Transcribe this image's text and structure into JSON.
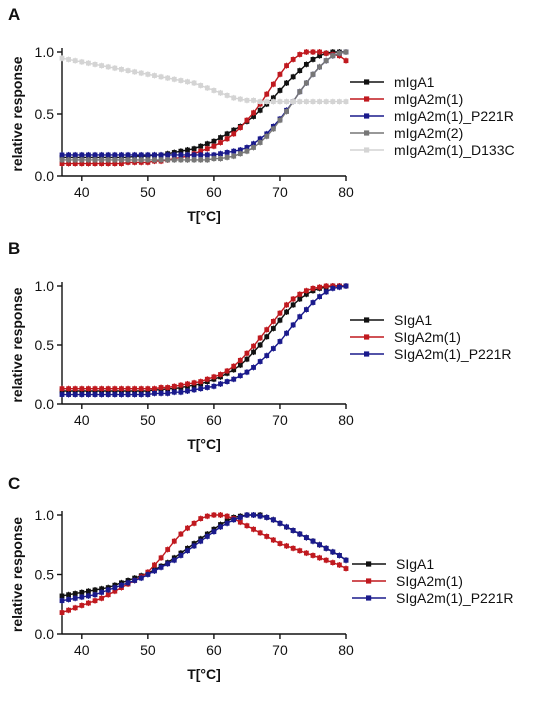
{
  "chart_data": [
    {
      "type": "line",
      "panel": "A",
      "xlabel": "T[°C]",
      "ylabel": "relative response",
      "xlim": [
        37,
        80
      ],
      "ylim": [
        0,
        1.0
      ],
      "xticks": [
        "40",
        "50",
        "60",
        "70",
        "80"
      ],
      "yticks": [
        "0.0",
        "0.5",
        "1.0"
      ],
      "legend": "right",
      "x": [
        37,
        38,
        39,
        40,
        41,
        42,
        43,
        44,
        45,
        46,
        47,
        48,
        49,
        50,
        51,
        52,
        53,
        54,
        55,
        56,
        57,
        58,
        59,
        60,
        61,
        62,
        63,
        64,
        65,
        66,
        67,
        68,
        69,
        70,
        71,
        72,
        73,
        74,
        75,
        76,
        77,
        78,
        79,
        80
      ],
      "series": [
        {
          "name": "mIgA1",
          "color": "#111111",
          "values": [
            0.15,
            0.15,
            0.15,
            0.15,
            0.15,
            0.15,
            0.15,
            0.15,
            0.15,
            0.15,
            0.15,
            0.16,
            0.16,
            0.16,
            0.17,
            0.17,
            0.18,
            0.19,
            0.2,
            0.21,
            0.22,
            0.24,
            0.26,
            0.28,
            0.31,
            0.34,
            0.37,
            0.4,
            0.44,
            0.48,
            0.53,
            0.58,
            0.63,
            0.69,
            0.75,
            0.8,
            0.85,
            0.9,
            0.94,
            0.97,
            0.99,
            1.0,
            1.0,
            1.0
          ]
        },
        {
          "name": "mIgA2m(1)",
          "color": "#c0191f",
          "values": [
            0.1,
            0.1,
            0.1,
            0.1,
            0.1,
            0.1,
            0.1,
            0.1,
            0.1,
            0.1,
            0.11,
            0.11,
            0.11,
            0.11,
            0.12,
            0.12,
            0.13,
            0.14,
            0.15,
            0.16,
            0.18,
            0.2,
            0.22,
            0.24,
            0.27,
            0.3,
            0.34,
            0.39,
            0.45,
            0.51,
            0.58,
            0.66,
            0.74,
            0.82,
            0.89,
            0.94,
            0.98,
            1.0,
            1.0,
            1.0,
            0.99,
            0.98,
            0.97,
            0.93
          ]
        },
        {
          "name": "mIgA2m(1)_P221R",
          "color": "#1a1a8c",
          "values": [
            0.17,
            0.17,
            0.17,
            0.17,
            0.17,
            0.17,
            0.17,
            0.17,
            0.17,
            0.17,
            0.17,
            0.17,
            0.17,
            0.17,
            0.17,
            0.17,
            0.17,
            0.17,
            0.17,
            0.17,
            0.17,
            0.17,
            0.17,
            0.17,
            0.18,
            0.19,
            0.2,
            0.21,
            0.23,
            0.26,
            0.3,
            0.34,
            0.4,
            0.46,
            0.53,
            0.6,
            0.68,
            0.75,
            0.82,
            0.88,
            0.93,
            0.97,
            0.99,
            1.0
          ]
        },
        {
          "name": "mIgA2m(2)",
          "color": "#777777",
          "values": [
            0.13,
            0.13,
            0.13,
            0.13,
            0.13,
            0.13,
            0.13,
            0.13,
            0.13,
            0.13,
            0.13,
            0.13,
            0.13,
            0.13,
            0.13,
            0.13,
            0.13,
            0.13,
            0.13,
            0.13,
            0.13,
            0.13,
            0.13,
            0.14,
            0.14,
            0.15,
            0.16,
            0.18,
            0.2,
            0.23,
            0.27,
            0.32,
            0.38,
            0.45,
            0.52,
            0.6,
            0.68,
            0.75,
            0.82,
            0.88,
            0.93,
            0.97,
            0.99,
            1.0
          ]
        },
        {
          "name": "mIgA2m(1)_D133C",
          "color": "#d4d4d4",
          "values": [
            0.95,
            0.94,
            0.93,
            0.92,
            0.91,
            0.9,
            0.89,
            0.88,
            0.87,
            0.86,
            0.85,
            0.84,
            0.83,
            0.82,
            0.81,
            0.8,
            0.79,
            0.78,
            0.77,
            0.76,
            0.75,
            0.73,
            0.71,
            0.69,
            0.67,
            0.65,
            0.63,
            0.62,
            0.61,
            0.61,
            0.6,
            0.6,
            0.6,
            0.6,
            0.6,
            0.6,
            0.6,
            0.6,
            0.6,
            0.6,
            0.6,
            0.6,
            0.6,
            0.6
          ]
        }
      ]
    },
    {
      "type": "line",
      "panel": "B",
      "xlabel": "T[°C]",
      "ylabel": "relative response",
      "xlim": [
        37,
        80
      ],
      "ylim": [
        0,
        1.0
      ],
      "xticks": [
        "40",
        "50",
        "60",
        "70",
        "80"
      ],
      "yticks": [
        "0.0",
        "0.5",
        "1.0"
      ],
      "legend": "right",
      "x": [
        37,
        38,
        39,
        40,
        41,
        42,
        43,
        44,
        45,
        46,
        47,
        48,
        49,
        50,
        51,
        52,
        53,
        54,
        55,
        56,
        57,
        58,
        59,
        60,
        61,
        62,
        63,
        64,
        65,
        66,
        67,
        68,
        69,
        70,
        71,
        72,
        73,
        74,
        75,
        76,
        77,
        78,
        79,
        80
      ],
      "series": [
        {
          "name": "SIgA1",
          "color": "#111111",
          "values": [
            0.11,
            0.11,
            0.11,
            0.11,
            0.11,
            0.11,
            0.11,
            0.11,
            0.11,
            0.11,
            0.11,
            0.11,
            0.11,
            0.11,
            0.12,
            0.12,
            0.13,
            0.13,
            0.14,
            0.15,
            0.16,
            0.17,
            0.19,
            0.21,
            0.23,
            0.26,
            0.29,
            0.33,
            0.38,
            0.44,
            0.5,
            0.57,
            0.64,
            0.71,
            0.78,
            0.84,
            0.89,
            0.93,
            0.96,
            0.98,
            0.99,
            1.0,
            1.0,
            1.0
          ]
        },
        {
          "name": "SIgA2m(1)",
          "color": "#c0191f",
          "values": [
            0.13,
            0.13,
            0.13,
            0.13,
            0.13,
            0.13,
            0.13,
            0.13,
            0.13,
            0.13,
            0.13,
            0.13,
            0.13,
            0.13,
            0.13,
            0.14,
            0.14,
            0.15,
            0.16,
            0.17,
            0.18,
            0.19,
            0.21,
            0.23,
            0.25,
            0.28,
            0.32,
            0.37,
            0.43,
            0.49,
            0.56,
            0.63,
            0.7,
            0.77,
            0.84,
            0.89,
            0.93,
            0.96,
            0.98,
            0.99,
            1.0,
            1.0,
            1.0,
            1.0
          ]
        },
        {
          "name": "SIgA2m(1)_P221R",
          "color": "#1a1a8c",
          "values": [
            0.08,
            0.08,
            0.08,
            0.08,
            0.08,
            0.08,
            0.08,
            0.08,
            0.08,
            0.08,
            0.08,
            0.08,
            0.08,
            0.08,
            0.09,
            0.09,
            0.09,
            0.1,
            0.1,
            0.11,
            0.12,
            0.13,
            0.14,
            0.15,
            0.17,
            0.19,
            0.21,
            0.24,
            0.27,
            0.31,
            0.36,
            0.41,
            0.47,
            0.53,
            0.6,
            0.67,
            0.74,
            0.8,
            0.86,
            0.91,
            0.95,
            0.98,
            0.99,
            1.0
          ]
        }
      ]
    },
    {
      "type": "line",
      "panel": "C",
      "xlabel": "T[°C]",
      "ylabel": "relative response",
      "xlim": [
        37,
        80
      ],
      "ylim": [
        0,
        1.0
      ],
      "xticks": [
        "40",
        "50",
        "60",
        "70",
        "80"
      ],
      "yticks": [
        "0.0",
        "0.5",
        "1.0"
      ],
      "legend": "right",
      "x": [
        37,
        38,
        39,
        40,
        41,
        42,
        43,
        44,
        45,
        46,
        47,
        48,
        49,
        50,
        51,
        52,
        53,
        54,
        55,
        56,
        57,
        58,
        59,
        60,
        61,
        62,
        63,
        64,
        65,
        66,
        67,
        68,
        69,
        70,
        71,
        72,
        73,
        74,
        75,
        76,
        77,
        78,
        79,
        80
      ],
      "series": [
        {
          "name": "SIgA1",
          "color": "#111111",
          "values": [
            0.32,
            0.33,
            0.34,
            0.35,
            0.36,
            0.37,
            0.38,
            0.39,
            0.41,
            0.43,
            0.45,
            0.47,
            0.49,
            0.51,
            0.54,
            0.57,
            0.6,
            0.64,
            0.68,
            0.72,
            0.76,
            0.8,
            0.84,
            0.88,
            0.92,
            0.95,
            0.98,
            0.99,
            1.0,
            1.0,
            1.0,
            0.98,
            0.96,
            0.93,
            0.9,
            0.87,
            0.84,
            0.81,
            0.78,
            0.75,
            0.72,
            0.69,
            0.66,
            0.62
          ]
        },
        {
          "name": "SIgA2m(1)",
          "color": "#c0191f",
          "values": [
            0.18,
            0.2,
            0.22,
            0.24,
            0.26,
            0.28,
            0.3,
            0.33,
            0.36,
            0.39,
            0.42,
            0.45,
            0.48,
            0.52,
            0.58,
            0.64,
            0.71,
            0.78,
            0.84,
            0.89,
            0.93,
            0.97,
            0.99,
            1.0,
            1.0,
            0.99,
            0.97,
            0.94,
            0.91,
            0.88,
            0.85,
            0.82,
            0.79,
            0.76,
            0.74,
            0.72,
            0.7,
            0.68,
            0.66,
            0.64,
            0.62,
            0.6,
            0.58,
            0.55
          ]
        },
        {
          "name": "SIgA2m(1)_P221R",
          "color": "#1a1a8c",
          "values": [
            0.28,
            0.29,
            0.3,
            0.31,
            0.32,
            0.33,
            0.35,
            0.37,
            0.39,
            0.41,
            0.43,
            0.45,
            0.47,
            0.5,
            0.53,
            0.56,
            0.59,
            0.62,
            0.66,
            0.7,
            0.74,
            0.78,
            0.82,
            0.86,
            0.9,
            0.93,
            0.96,
            0.98,
            1.0,
            1.0,
            0.99,
            0.98,
            0.96,
            0.93,
            0.9,
            0.87,
            0.84,
            0.81,
            0.78,
            0.75,
            0.72,
            0.69,
            0.66,
            0.62
          ]
        }
      ]
    }
  ]
}
